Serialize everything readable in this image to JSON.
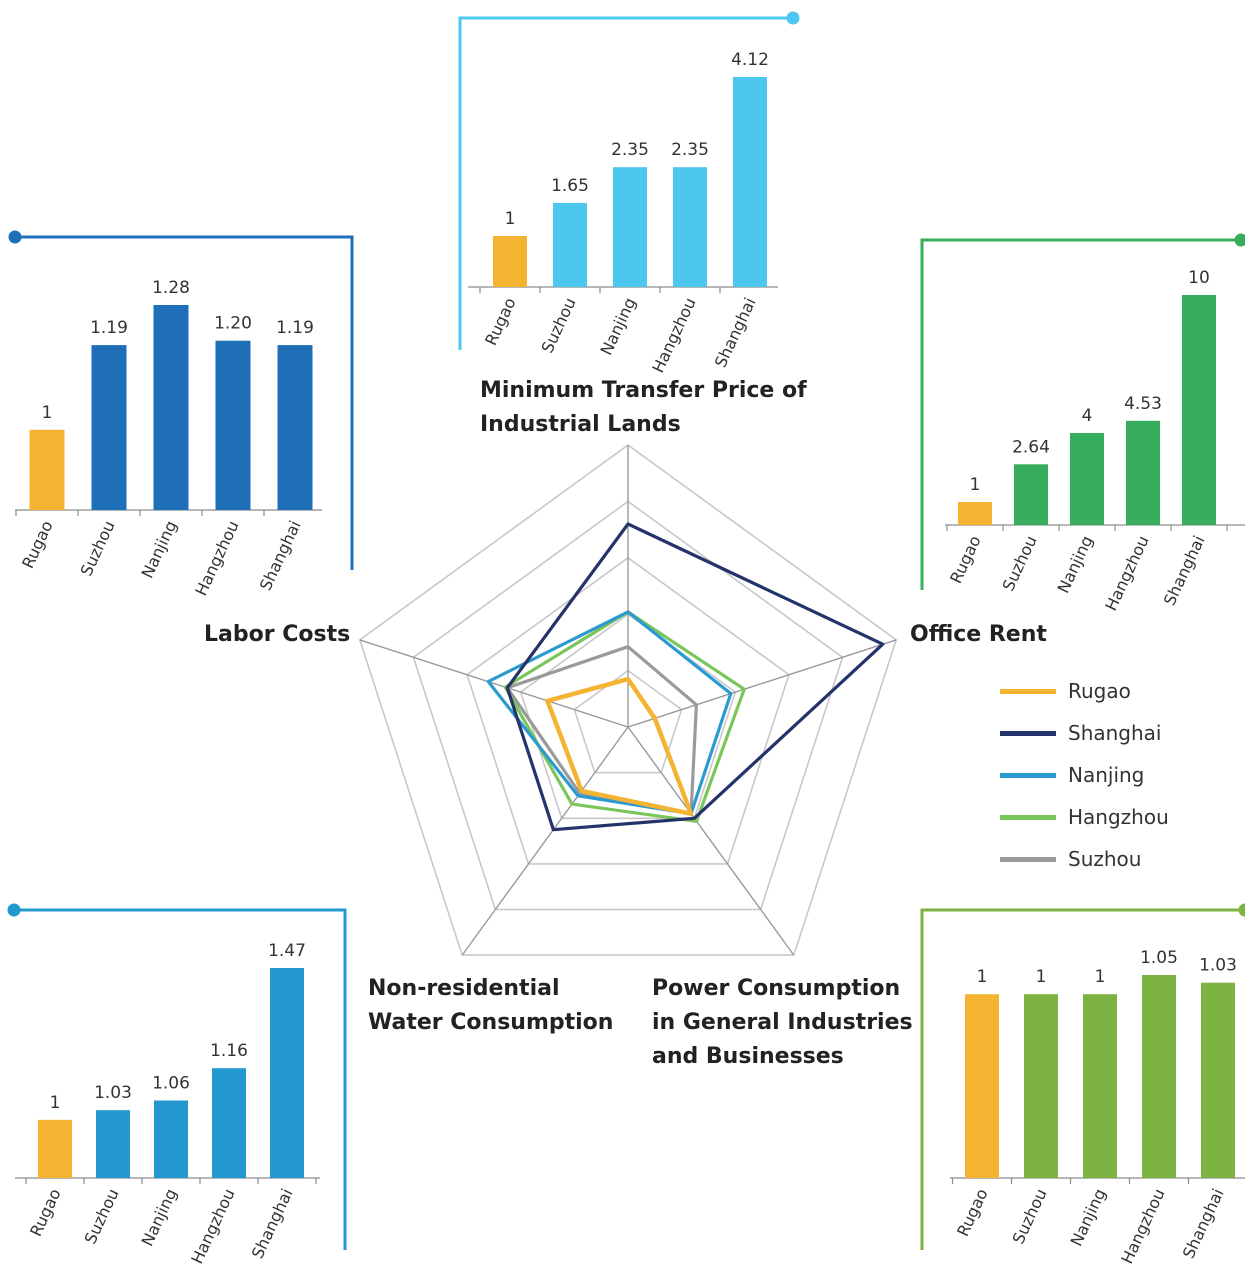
{
  "colors": {
    "rugao": "#F4B331",
    "labor": "#1E6FB8",
    "land": "#4CC8F0",
    "office": "#37AE5B",
    "water": "#2399CF",
    "power": "#7CB342",
    "shanghai_line": "#24336A",
    "nanjing_line": "#2B9AD0",
    "hangzhou_line": "#7BC65A",
    "suzhou_line": "#9A9A9A",
    "grid": "#C8C8C8"
  },
  "radar": {
    "axes": [
      {
        "key": "land",
        "label_lines": [
          "Minimum Transfer Price of",
          "Industrial Lands"
        ]
      },
      {
        "key": "office",
        "label_lines": [
          "Office Rent"
        ]
      },
      {
        "key": "power",
        "label_lines": [
          "Power Consumption",
          "in General Industries",
          "and Businesses"
        ]
      },
      {
        "key": "water",
        "label_lines": [
          "Non-residential",
          "Water Consumption"
        ]
      },
      {
        "key": "labor",
        "label_lines": [
          "Labor Costs"
        ]
      }
    ],
    "legend": [
      "Rugao",
      "Shanghai",
      "Nanjing",
      "Hangzhou",
      "Suzhou"
    ]
  },
  "chart_data": [
    {
      "type": "bar",
      "name": "Minimum Transfer Price of Industrial Lands",
      "categories": [
        "Rugao",
        "Suzhou",
        "Nanjing",
        "Hangzhou",
        "Shanghai"
      ],
      "values": [
        1,
        1.65,
        2.35,
        2.35,
        4.12
      ],
      "labels": [
        "1",
        "1.65",
        "2.35",
        "2.35",
        "4.12"
      ]
    },
    {
      "type": "bar",
      "name": "Labor Costs",
      "categories": [
        "Rugao",
        "Suzhou",
        "Nanjing",
        "Hangzhou",
        "Shanghai"
      ],
      "values": [
        1,
        1.19,
        1.28,
        1.2,
        1.19
      ],
      "labels": [
        "1",
        "1.19",
        "1.28",
        "1.20",
        "1.19"
      ]
    },
    {
      "type": "bar",
      "name": "Office Rent",
      "categories": [
        "Rugao",
        "Suzhou",
        "Nanjing",
        "Hangzhou",
        "Shanghai"
      ],
      "values": [
        1,
        2.64,
        4,
        4.53,
        10
      ],
      "labels": [
        "1",
        "2.64",
        "4",
        "4.53",
        "10"
      ]
    },
    {
      "type": "bar",
      "name": "Non-residential Water Consumption",
      "categories": [
        "Rugao",
        "Suzhou",
        "Nanjing",
        "Hangzhou",
        "Shanghai"
      ],
      "values": [
        1,
        1.03,
        1.06,
        1.16,
        1.47
      ],
      "labels": [
        "1",
        "1.03",
        "1.06",
        "1.16",
        "1.47"
      ]
    },
    {
      "type": "bar",
      "name": "Power Consumption in General Industries and Businesses",
      "categories": [
        "Rugao",
        "Suzhou",
        "Nanjing",
        "Hangzhou",
        "Shanghai"
      ],
      "values": [
        1,
        1,
        1,
        1.05,
        1.03
      ],
      "labels": [
        "1",
        "1",
        "1",
        "1.05",
        "1.03"
      ]
    },
    {
      "type": "radar",
      "axes": [
        "Minimum Transfer Price of Industrial Lands",
        "Office Rent",
        "Power Consumption in General Industries and Businesses",
        "Non-residential Water Consumption",
        "Labor Costs"
      ],
      "series": [
        {
          "name": "Rugao",
          "values": [
            1,
            1,
            1,
            1,
            1
          ]
        },
        {
          "name": "Shanghai",
          "values": [
            4.12,
            10,
            1.03,
            1.47,
            1.19
          ]
        },
        {
          "name": "Nanjing",
          "values": [
            2.35,
            4,
            1,
            1.06,
            1.28
          ]
        },
        {
          "name": "Hangzhou",
          "values": [
            2.35,
            4.53,
            1.05,
            1.16,
            1.2
          ]
        },
        {
          "name": "Suzhou",
          "values": [
            1.65,
            2.64,
            1,
            1.03,
            1.19
          ]
        }
      ]
    }
  ]
}
